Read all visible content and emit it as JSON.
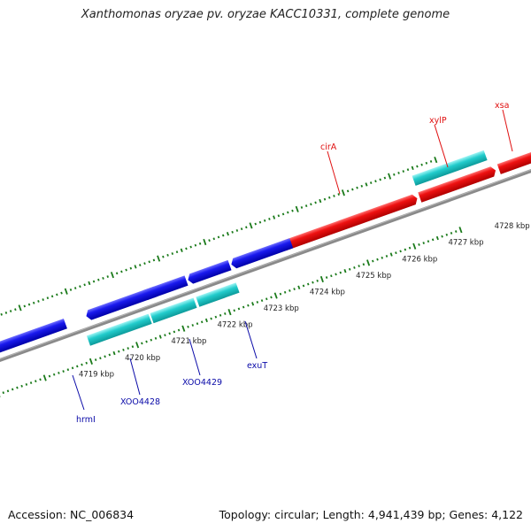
{
  "title": "Xanthomonas oryzae pv. oryzae KACC10331, complete genome",
  "footer": {
    "accession": "Accession: NC_006834",
    "summary": "Topology: circular; Length: 4,941,439 bp; Genes: 4,122"
  },
  "colors": {
    "backbone": "#8a8a8a",
    "tick": "#1a7a1a",
    "forward_gene": "#e01010",
    "reverse_gene": "#1010e0",
    "cds": "#1ec8c8",
    "forward_label": "#e01010",
    "reverse_label": "#0a0aa8"
  },
  "ruler_labels": [
    "4719 kbp",
    "4720 kbp",
    "4721 kbp",
    "4722 kbp",
    "4723 kbp",
    "4724 kbp",
    "4725 kbp",
    "4726 kbp",
    "4727 kbp",
    "4728 kbp"
  ],
  "forward_gene_labels": [
    "cirA",
    "xylP",
    "xsa"
  ],
  "reverse_gene_labels": [
    "hrmI",
    "XOO4428",
    "XOO4429",
    "exuT"
  ]
}
